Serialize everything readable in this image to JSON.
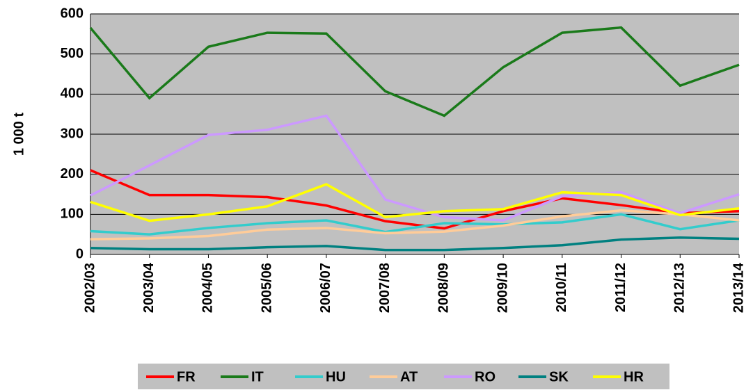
{
  "chart_data": {
    "type": "line",
    "y_label": "1 000 t",
    "categories": [
      "2002/03",
      "2003/04",
      "2004/05",
      "2005/06",
      "2006/07",
      "2007/08",
      "2008/09",
      "2009/10",
      "2010/11",
      "2011/12",
      "2012/13",
      "2013/14"
    ],
    "series": [
      {
        "name": "FR",
        "color": "#ff0000",
        "values": [
          210,
          148,
          148,
          143,
          122,
          83,
          65,
          108,
          140,
          123,
          103,
          108
        ]
      },
      {
        "name": "IT",
        "color": "#1a7a1a",
        "values": [
          565,
          390,
          518,
          553,
          551,
          407,
          346,
          467,
          553,
          566,
          421,
          473
        ]
      },
      {
        "name": "HU",
        "color": "#33cccc",
        "values": [
          58,
          50,
          66,
          78,
          85,
          56,
          78,
          75,
          80,
          100,
          63,
          85
        ]
      },
      {
        "name": "AT",
        "color": "#ffcc99",
        "values": [
          38,
          40,
          46,
          62,
          66,
          53,
          57,
          72,
          95,
          110,
          100,
          85
        ]
      },
      {
        "name": "RO",
        "color": "#cc99ff",
        "values": [
          147,
          222,
          298,
          311,
          346,
          137,
          93,
          85,
          145,
          155,
          103,
          150
        ]
      },
      {
        "name": "SK",
        "color": "#008080",
        "values": [
          16,
          13,
          13,
          18,
          21,
          11,
          11,
          16,
          23,
          37,
          42,
          39
        ]
      },
      {
        "name": "HR",
        "color": "#ffff00",
        "values": [
          131,
          84,
          100,
          120,
          175,
          93,
          108,
          113,
          155,
          148,
          98,
          115
        ]
      }
    ],
    "ylim": [
      0,
      600
    ],
    "yticks": [
      0,
      100,
      200,
      300,
      400,
      500,
      600
    ],
    "grid": true
  }
}
